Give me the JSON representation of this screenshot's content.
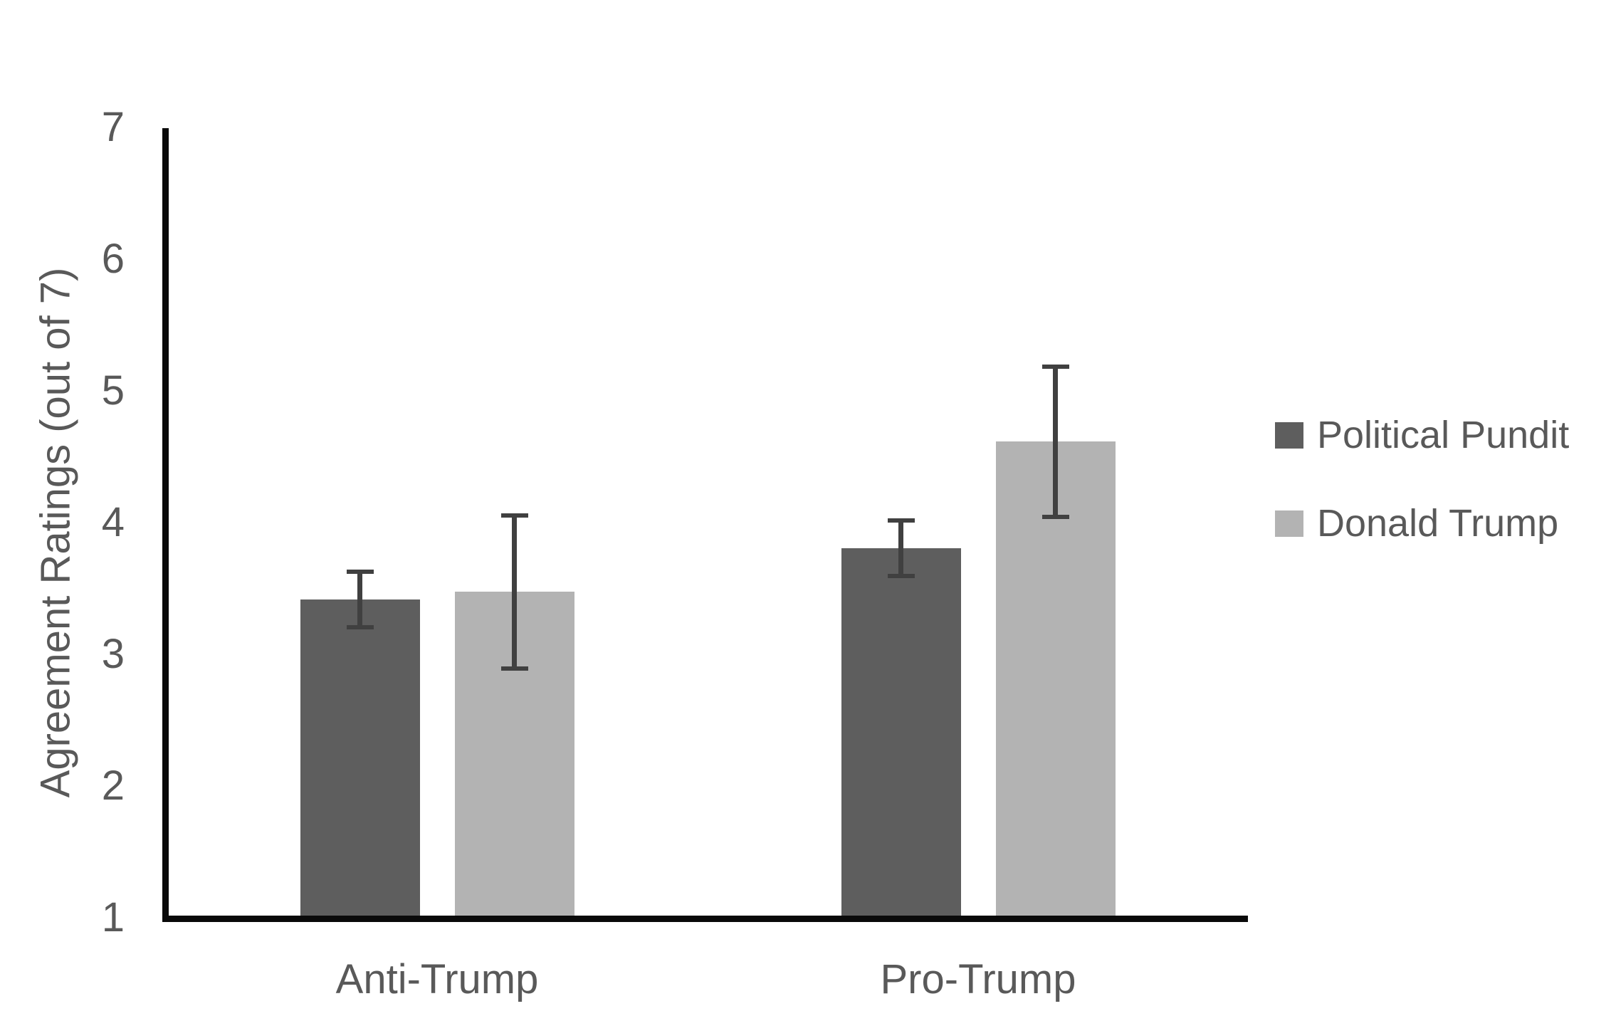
{
  "chart_data": {
    "type": "bar",
    "categories": [
      "Anti-Trump",
      "Pro-Trump"
    ],
    "series": [
      {
        "name": "Political Pundit",
        "color": "#5e5e5e",
        "values": [
          3.42,
          3.81
        ],
        "errors": [
          0.21,
          0.21
        ]
      },
      {
        "name": "Donald Trump",
        "color": "#b3b3b3",
        "values": [
          3.48,
          4.62
        ],
        "errors": [
          0.58,
          0.57
        ]
      }
    ],
    "ylabel": "Agreement Ratings (out of 7)",
    "xlabel": "",
    "ylim": [
      1,
      7
    ],
    "yticks": [
      1,
      2,
      3,
      4,
      5,
      6,
      7
    ],
    "grid": false,
    "legend_position": "right",
    "error_bar_color": "#404040",
    "axis_color": "#0a0a0a",
    "text_color": "#595959",
    "background_color": "#ffffff"
  }
}
